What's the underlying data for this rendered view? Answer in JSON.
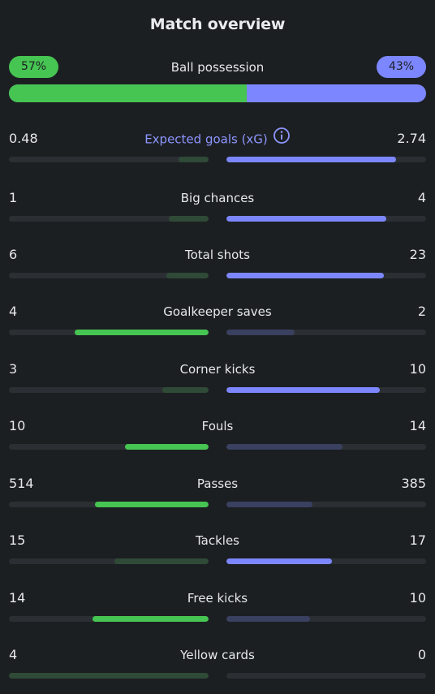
{
  "title": "Match overview",
  "colors": {
    "home_strong": "#46c552",
    "home_weak": "#2f4a37",
    "away_strong": "#7c87ff",
    "away_weak": "#3a4060",
    "track": "#2b2f33"
  },
  "possession": {
    "label": "Ball possession",
    "home": "57%",
    "away": "43%",
    "home_value": 57,
    "away_value": 43
  },
  "stats": [
    {
      "label": "Expected goals (xG)",
      "home": "0.48",
      "away": "2.74",
      "home_fill": 0.15,
      "away_fill": 0.85,
      "leader": "away",
      "info_icon": true
    },
    {
      "label": "Big chances",
      "home": "1",
      "away": "4",
      "home_fill": 0.2,
      "away_fill": 0.8,
      "leader": "away"
    },
    {
      "label": "Total shots",
      "home": "6",
      "away": "23",
      "home_fill": 0.21,
      "away_fill": 0.79,
      "leader": "away"
    },
    {
      "label": "Goalkeeper saves",
      "home": "4",
      "away": "2",
      "home_fill": 0.67,
      "away_fill": 0.34,
      "leader": "home"
    },
    {
      "label": "Corner kicks",
      "home": "3",
      "away": "10",
      "home_fill": 0.23,
      "away_fill": 0.77,
      "leader": "away"
    },
    {
      "label": "Fouls",
      "home": "10",
      "away": "14",
      "home_fill": 0.42,
      "away_fill": 0.58,
      "leader": "home"
    },
    {
      "label": "Passes",
      "home": "514",
      "away": "385",
      "home_fill": 0.57,
      "away_fill": 0.43,
      "leader": "home"
    },
    {
      "label": "Tackles",
      "home": "15",
      "away": "17",
      "home_fill": 0.47,
      "away_fill": 0.53,
      "leader": "away"
    },
    {
      "label": "Free kicks",
      "home": "14",
      "away": "10",
      "home_fill": 0.58,
      "away_fill": 0.42,
      "leader": "home"
    },
    {
      "label": "Yellow cards",
      "home": "4",
      "away": "0",
      "home_fill": 1.0,
      "away_fill": 0.0,
      "leader": "none"
    }
  ]
}
